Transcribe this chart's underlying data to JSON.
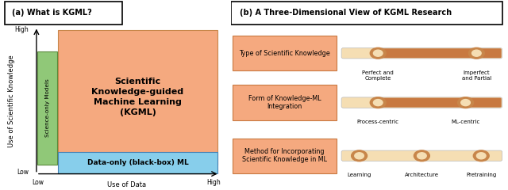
{
  "panel_a_title": "(a) What is KGML?",
  "panel_b_title": "(b) A Three-Dimensional View of KGML Research",
  "kgml_label": "Scientific\nKnowledge-guided\nMachine Learning\n(KGML)",
  "science_only_label": "Science-only Models",
  "data_only_label": "Data-only (black-box) ML",
  "xlabel": "Use of Data",
  "ylabel": "Use of Scientific Knowledge",
  "x_low": "Low",
  "x_high": "High",
  "y_low": "Low",
  "y_high": "High",
  "kgml_facecolor": "#F5A97F",
  "kgml_edgecolor": "#C8864A",
  "science_facecolor": "#90C878",
  "science_edgecolor": "#5A8A3C",
  "data_facecolor": "#87CEEB",
  "data_edgecolor": "#4682B4",
  "dim_labels": [
    "Type of Scientific Knowledge",
    "Form of Knowledge-ML\nIntegration",
    "Method for Incorporating\nScientific Knowledge in ML"
  ],
  "dim_box_facecolor": "#F5A97F",
  "dim_box_edgecolor": "#C87941",
  "slider_labels_1": [
    "Perfect and\nComplete",
    "Imperfect\nand Partial"
  ],
  "slider_labels_2": [
    "Process-centric",
    "ML-centric"
  ],
  "slider_labels_3": [
    "Learning",
    "Architecture",
    "Pretraining"
  ],
  "slider_bg": "#F5DEB3",
  "slider_fill": "#C87941",
  "dot_outer": "#C8864A",
  "dot_inner": "#F5DEB3"
}
